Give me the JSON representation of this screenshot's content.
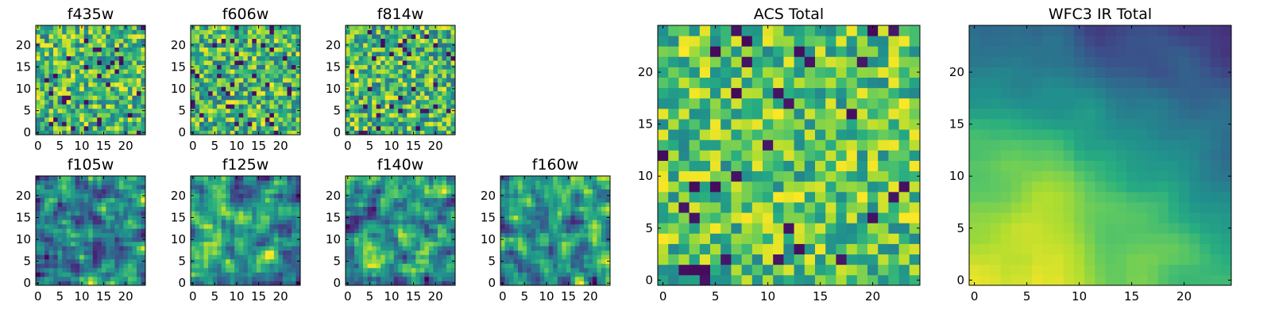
{
  "chart_data": [
    {
      "type": "heatmap",
      "title": "f435w",
      "grid_size": 25,
      "xticks": [
        0,
        5,
        10,
        15,
        20
      ],
      "yticks": [
        0,
        5,
        10,
        15,
        20
      ],
      "xlim": [
        0,
        24
      ],
      "ylim": [
        0,
        24
      ],
      "colormap": "viridis",
      "texture": "noise",
      "seed": 11
    },
    {
      "type": "heatmap",
      "title": "f606w",
      "grid_size": 25,
      "xticks": [
        0,
        5,
        10,
        15,
        20
      ],
      "yticks": [
        0,
        5,
        10,
        15,
        20
      ],
      "xlim": [
        0,
        24
      ],
      "ylim": [
        0,
        24
      ],
      "colormap": "viridis",
      "texture": "noise",
      "seed": 23
    },
    {
      "type": "heatmap",
      "title": "f814w",
      "grid_size": 25,
      "xticks": [
        0,
        5,
        10,
        15,
        20
      ],
      "yticks": [
        0,
        5,
        10,
        15,
        20
      ],
      "xlim": [
        0,
        24
      ],
      "ylim": [
        0,
        24
      ],
      "colormap": "viridis",
      "texture": "noise",
      "seed": 37
    },
    {
      "type": "heatmap",
      "title": "f105w",
      "grid_size": 25,
      "xticks": [
        0,
        5,
        10,
        15,
        20
      ],
      "yticks": [
        0,
        5,
        10,
        15,
        20
      ],
      "xlim": [
        0,
        24
      ],
      "ylim": [
        0,
        24
      ],
      "colormap": "viridis",
      "texture": "smooth",
      "seed": 41
    },
    {
      "type": "heatmap",
      "title": "f125w",
      "grid_size": 25,
      "xticks": [
        0,
        5,
        10,
        15,
        20
      ],
      "yticks": [
        0,
        5,
        10,
        15,
        20
      ],
      "xlim": [
        0,
        24
      ],
      "ylim": [
        0,
        24
      ],
      "colormap": "viridis",
      "texture": "smooth",
      "seed": 53
    },
    {
      "type": "heatmap",
      "title": "f140w",
      "grid_size": 25,
      "xticks": [
        0,
        5,
        10,
        15,
        20
      ],
      "yticks": [
        0,
        5,
        10,
        15,
        20
      ],
      "xlim": [
        0,
        24
      ],
      "ylim": [
        0,
        24
      ],
      "colormap": "viridis",
      "texture": "smooth",
      "seed": 67
    },
    {
      "type": "heatmap",
      "title": "f160w",
      "grid_size": 25,
      "xticks": [
        0,
        5,
        10,
        15,
        20
      ],
      "yticks": [
        0,
        5,
        10,
        15,
        20
      ],
      "xlim": [
        0,
        24
      ],
      "ylim": [
        0,
        24
      ],
      "colormap": "viridis",
      "texture": "smooth",
      "seed": 79
    },
    {
      "type": "heatmap",
      "title": "ACS Total",
      "grid_size": 25,
      "xticks": [
        0,
        5,
        10,
        15,
        20
      ],
      "yticks": [
        0,
        5,
        10,
        15,
        20
      ],
      "xlim": [
        0,
        24
      ],
      "ylim": [
        0,
        24
      ],
      "colormap": "viridis",
      "texture": "noise-bright",
      "seed": 97
    },
    {
      "type": "heatmap",
      "title": "WFC3 IR Total",
      "grid_size": 25,
      "xticks": [
        0,
        5,
        10,
        15,
        20
      ],
      "yticks": [
        0,
        5,
        10,
        15,
        20
      ],
      "xlim": [
        0,
        24
      ],
      "ylim": [
        0,
        24
      ],
      "colormap": "viridis",
      "texture": "gradient",
      "seed": 101
    }
  ],
  "colors": {
    "viridis_low": "#440154",
    "viridis_mid": "#21918c",
    "viridis_high": "#fde725",
    "frame": "#000000"
  }
}
